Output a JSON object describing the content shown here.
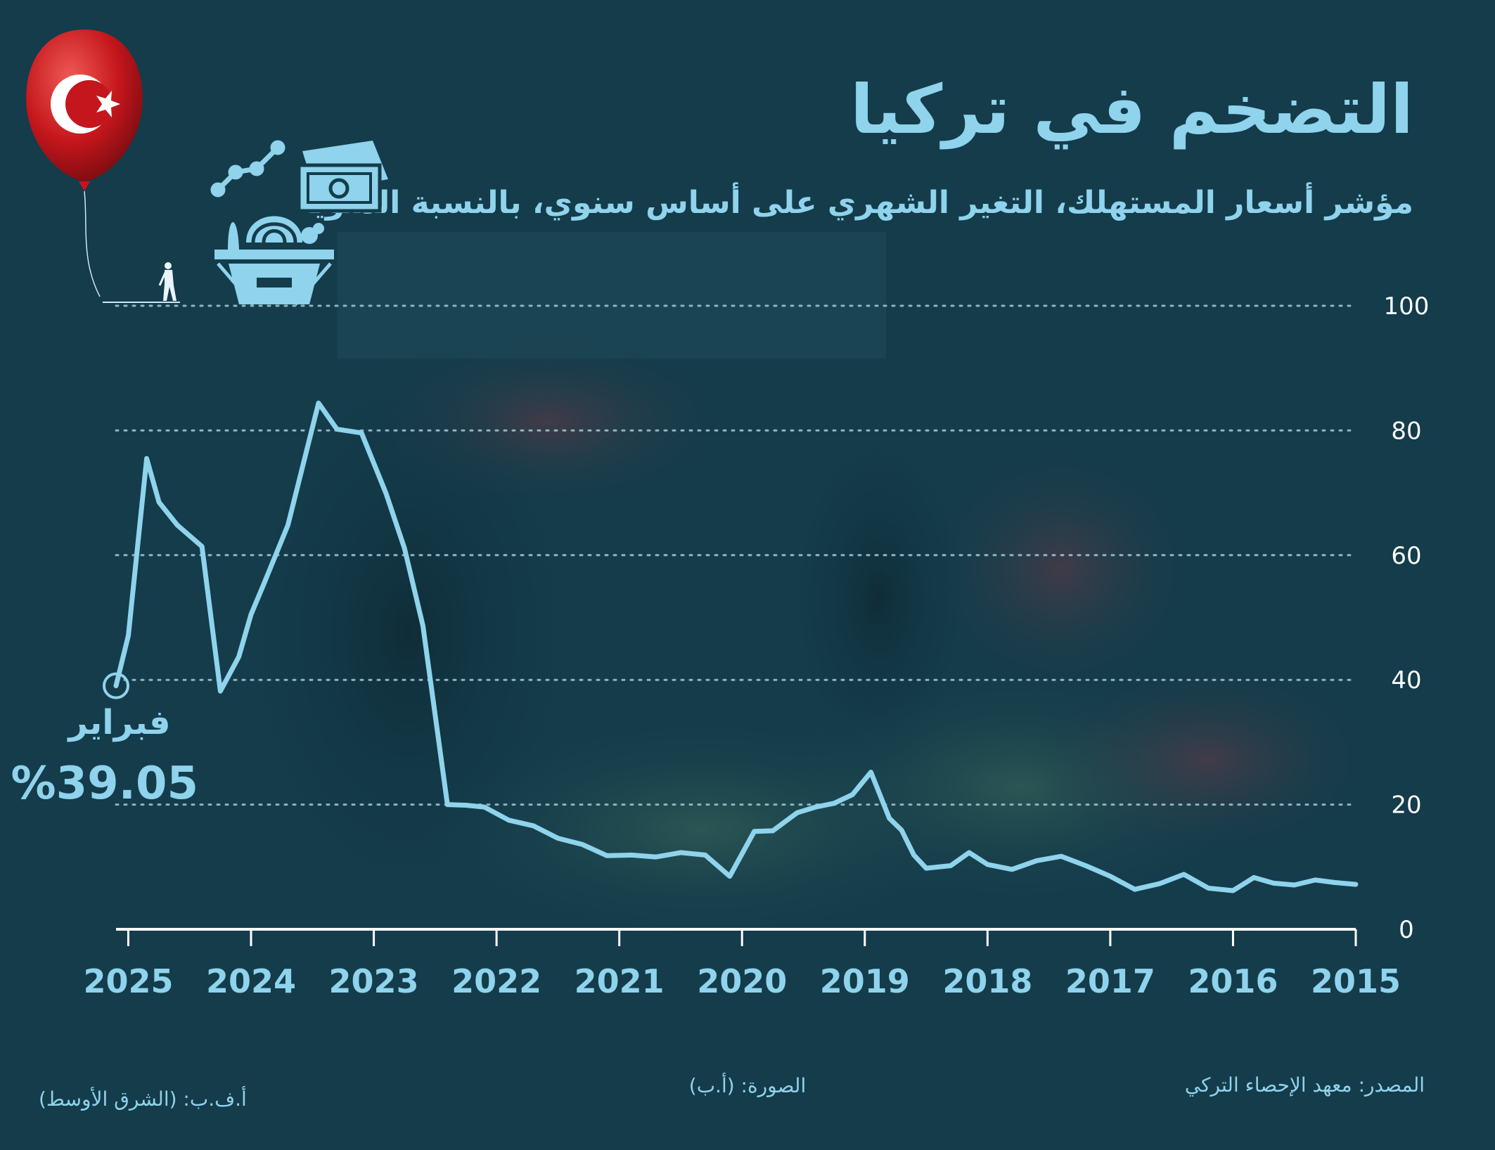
{
  "header": {
    "title": "التضخم في تركيا",
    "subtitle": "مؤشر أسعار المستهلك، التغير الشهري على أساس سنوي، بالنسبة المئوية"
  },
  "callout": {
    "month": "فبراير",
    "value": "%39.05",
    "x": 2025.1,
    "y": 39.05
  },
  "footer": {
    "source": "المصدر: معهد الإحصاء التركي",
    "photo": "الصورة: (أ.ب)",
    "credit": "أ.ف.ب: (الشرق الأوسط)"
  },
  "colors": {
    "background": "#143c4b",
    "accent": "#8fd3ec",
    "flag_red": "#c4161c"
  },
  "icons": [
    "turkish-flag-balloon-icon",
    "person-icon",
    "line-trend-icon",
    "banknote-icon",
    "shopping-basket-icon"
  ],
  "chart_data": {
    "type": "line",
    "title": "التضخم في تركيا",
    "subtitle": "مؤشر أسعار المستهلك، التغير الشهري على أساس سنوي، بالنسبة المئوية",
    "xlabel": "",
    "ylabel": "",
    "x_reversed": true,
    "xlim": [
      2015,
      2025.1
    ],
    "ylim": [
      0,
      100
    ],
    "y_ticks": [
      0,
      20,
      40,
      60,
      80,
      100
    ],
    "y_tick_labels": [
      "0",
      "20",
      "40",
      "60",
      "80",
      "100"
    ],
    "x_ticks": [
      2015,
      2016,
      2017,
      2018,
      2019,
      2020,
      2021,
      2022,
      2023,
      2024,
      2025
    ],
    "x_tick_labels": [
      "2015",
      "2016",
      "2017",
      "2018",
      "2019",
      "2020",
      "2021",
      "2022",
      "2023",
      "2024",
      "2025"
    ],
    "grid": true,
    "legend": "none",
    "series": [
      {
        "x": [
          2015.0,
          2015.17,
          2015.33,
          2015.5,
          2015.67,
          2015.83,
          2016.0,
          2016.2,
          2016.4,
          2016.6,
          2016.8,
          2017.0,
          2017.2,
          2017.4,
          2017.6,
          2017.8,
          2018.0,
          2018.15,
          2018.3,
          2018.5,
          2018.6,
          2018.7,
          2018.8,
          2018.95,
          2019.1,
          2019.25,
          2019.4,
          2019.55,
          2019.75,
          2019.9,
          2020.1,
          2020.3,
          2020.5,
          2020.7,
          2020.9,
          2021.1,
          2021.3,
          2021.5,
          2021.7,
          2021.9,
          2022.1,
          2022.25,
          2022.4,
          2022.6,
          2022.75,
          2022.9,
          2023.1,
          2023.3,
          2023.45,
          2023.7,
          2023.9,
          2024.0,
          2024.1,
          2024.25,
          2024.4,
          2024.6,
          2024.75,
          2024.85,
          2025.0,
          2025.1
        ],
        "values": [
          7.2,
          7.5,
          7.9,
          7.1,
          7.4,
          8.3,
          6.2,
          6.6,
          8.8,
          7.3,
          6.4,
          8.5,
          10.2,
          11.7,
          11.0,
          9.6,
          10.4,
          12.3,
          10.2,
          9.8,
          11.9,
          15.9,
          17.8,
          25.2,
          21.6,
          20.2,
          19.6,
          18.7,
          15.8,
          15.7,
          8.5,
          11.9,
          12.3,
          11.6,
          11.9,
          11.8,
          13.6,
          14.6,
          16.6,
          17.5,
          19.6,
          19.9,
          20.0,
          48.7,
          61.1,
          69.9,
          79.6,
          80.2,
          84.4,
          64.8,
          55.2,
          50.5,
          43.7,
          38.2,
          61.4,
          64.8,
          68.5,
          75.5,
          47.1,
          39.05
        ]
      }
    ]
  }
}
